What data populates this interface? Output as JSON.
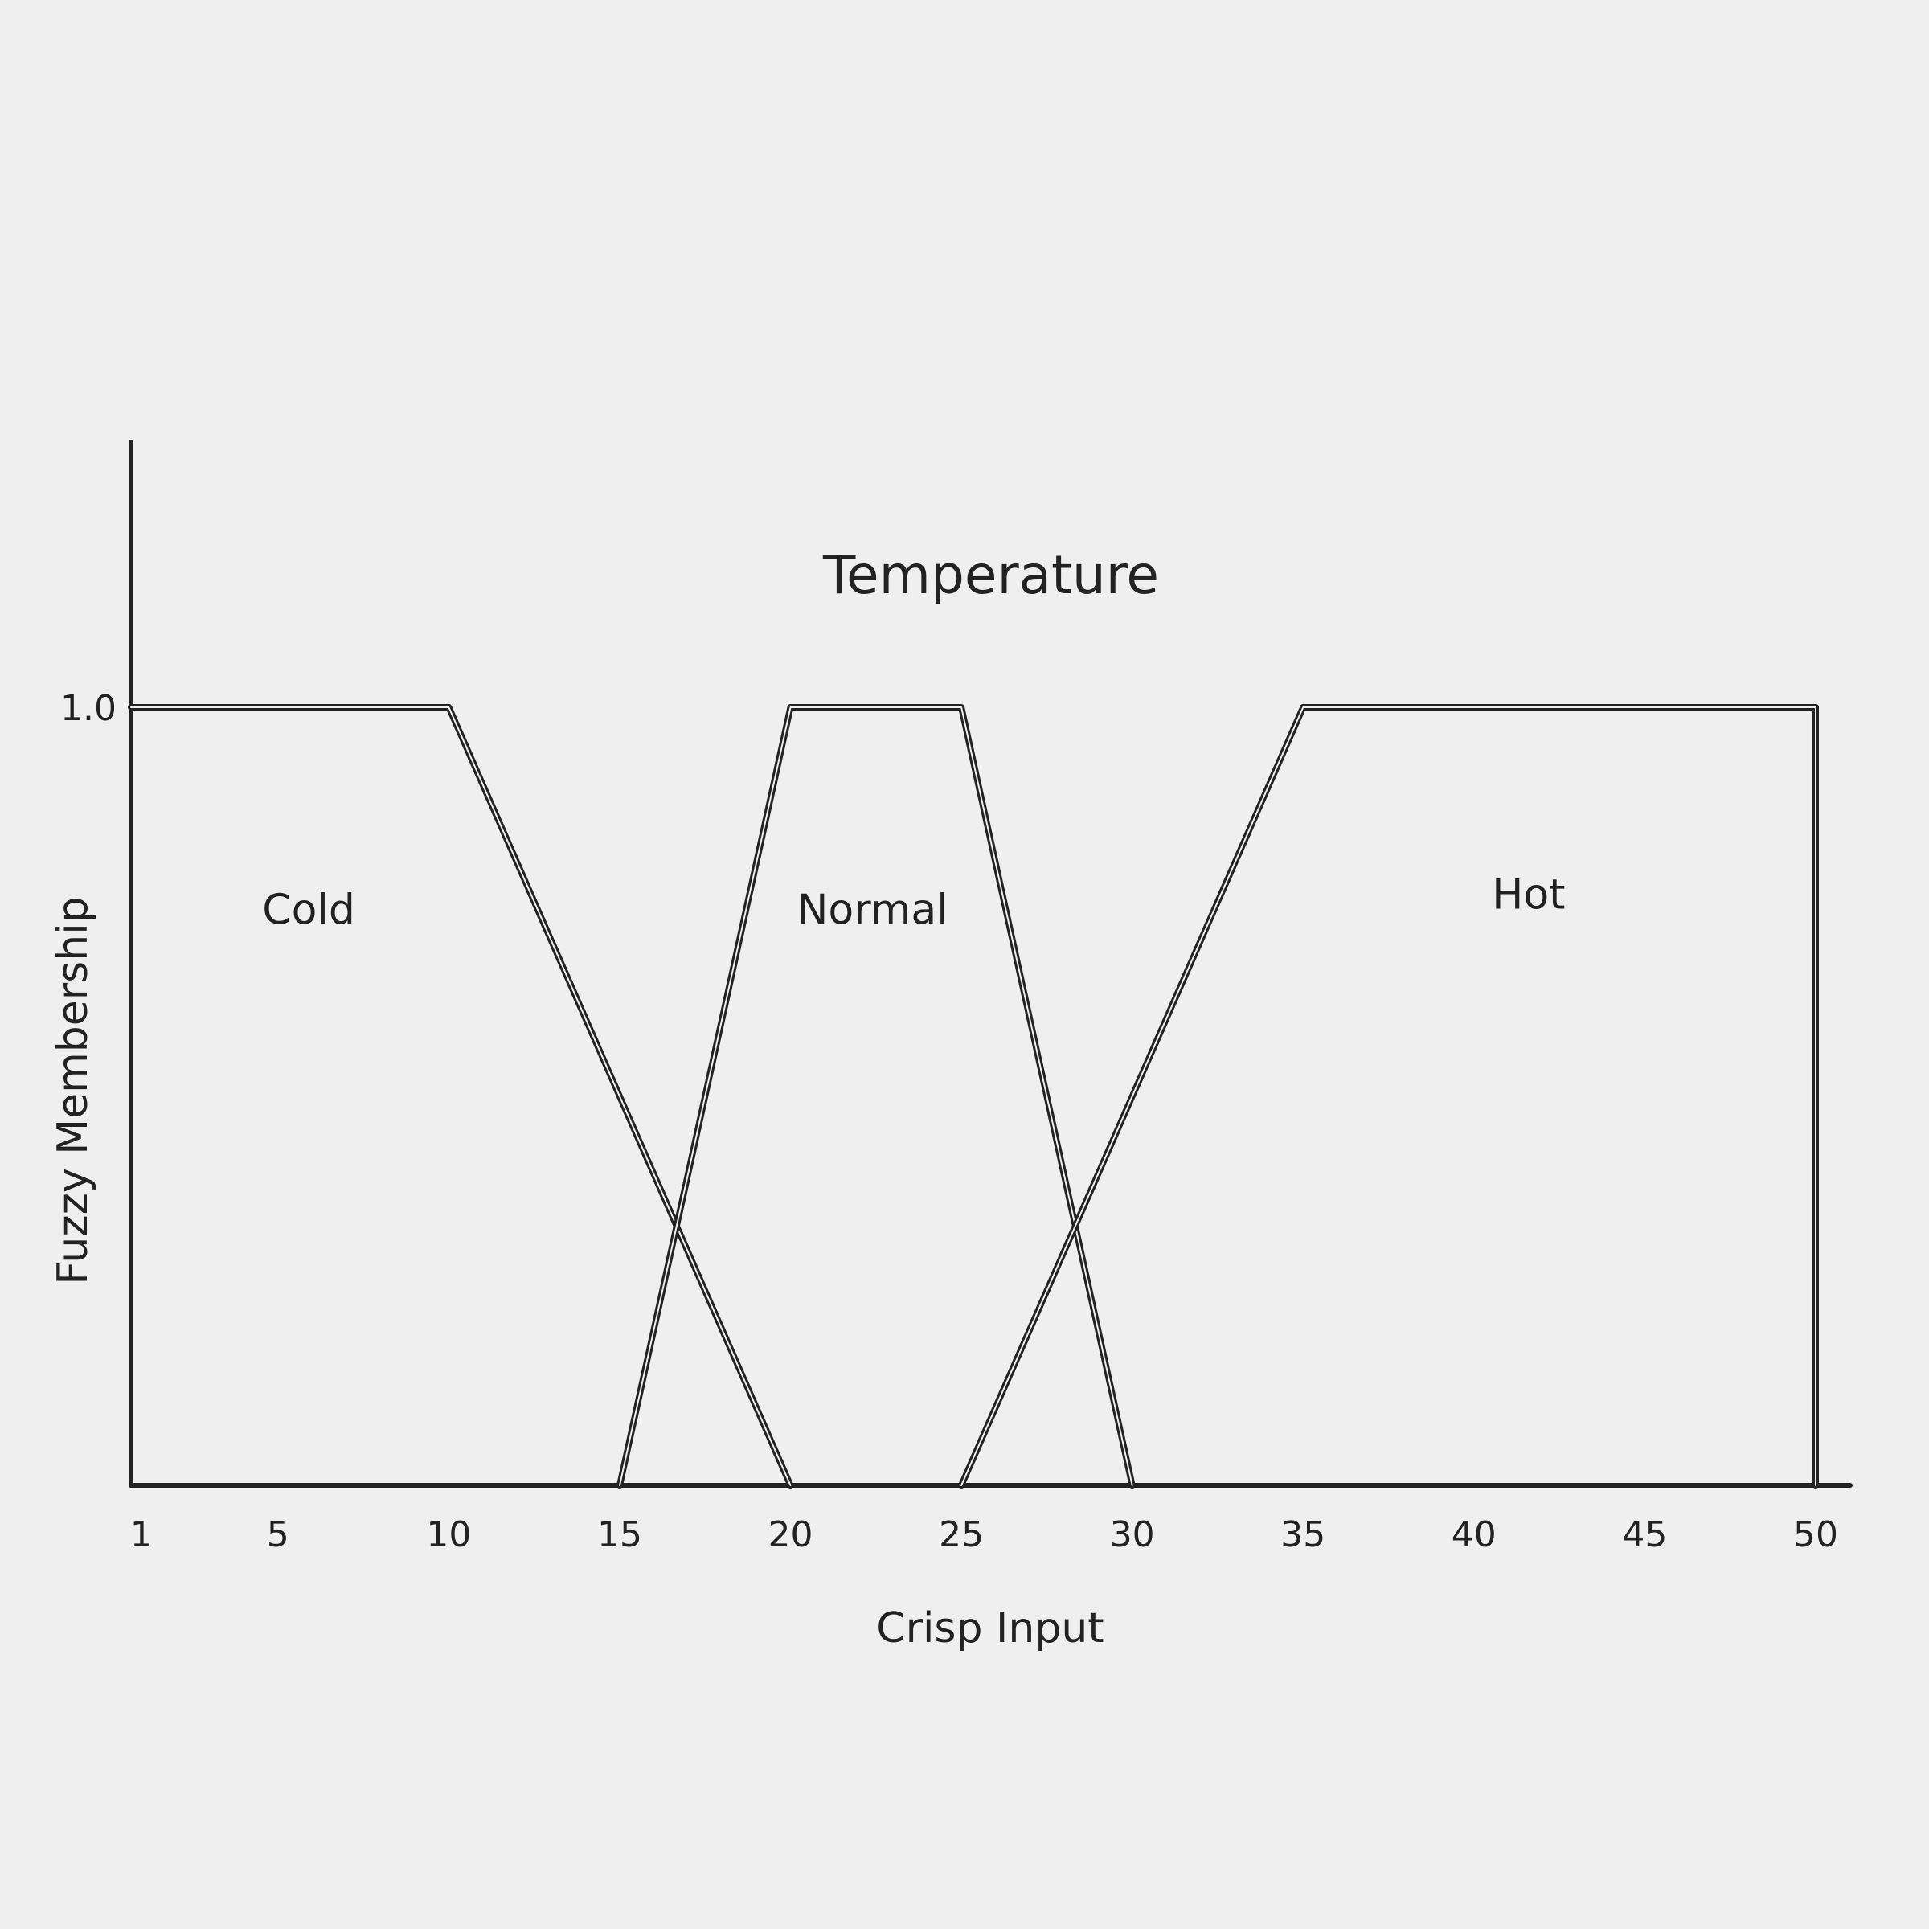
{
  "chart_data": {
    "type": "line",
    "title": "Temperature",
    "xlabel": "Crisp Input",
    "ylabel": "Fuzzy Membership",
    "xlim": [
      0.7,
      50.8
    ],
    "ylim": [
      0,
      1.34
    ],
    "x_ticks": [
      {
        "value": 1,
        "label": "1"
      },
      {
        "value": 5,
        "label": "5"
      },
      {
        "value": 10,
        "label": "10"
      },
      {
        "value": 15,
        "label": "15"
      },
      {
        "value": 20,
        "label": "20"
      },
      {
        "value": 25,
        "label": "25"
      },
      {
        "value": 30,
        "label": "30"
      },
      {
        "value": 35,
        "label": "35"
      },
      {
        "value": 40,
        "label": "40"
      },
      {
        "value": 45,
        "label": "45"
      },
      {
        "value": 50,
        "label": "50"
      }
    ],
    "y_ticks": [
      {
        "value": 1.0,
        "label": "1.0"
      }
    ],
    "series": [
      {
        "name": "Cold",
        "label_at": {
          "x": 5.9,
          "y": 0.74
        },
        "points": [
          [
            0.7,
            1.0
          ],
          [
            10,
            1.0
          ],
          [
            20,
            0.0
          ]
        ]
      },
      {
        "name": "Normal",
        "label_at": {
          "x": 22.4,
          "y": 0.74
        },
        "points": [
          [
            15,
            0.0
          ],
          [
            20,
            1.0
          ],
          [
            25,
            1.0
          ],
          [
            30,
            0.0
          ]
        ]
      },
      {
        "name": "Hot",
        "label_at": {
          "x": 41.6,
          "y": 0.76
        },
        "points": [
          [
            25,
            0.0
          ],
          [
            35,
            1.0
          ],
          [
            50,
            1.0
          ],
          [
            50,
            0.0
          ]
        ]
      }
    ],
    "grid": false,
    "legend": "none",
    "colors": {
      "background": "#efefef",
      "line": "#222222"
    }
  }
}
